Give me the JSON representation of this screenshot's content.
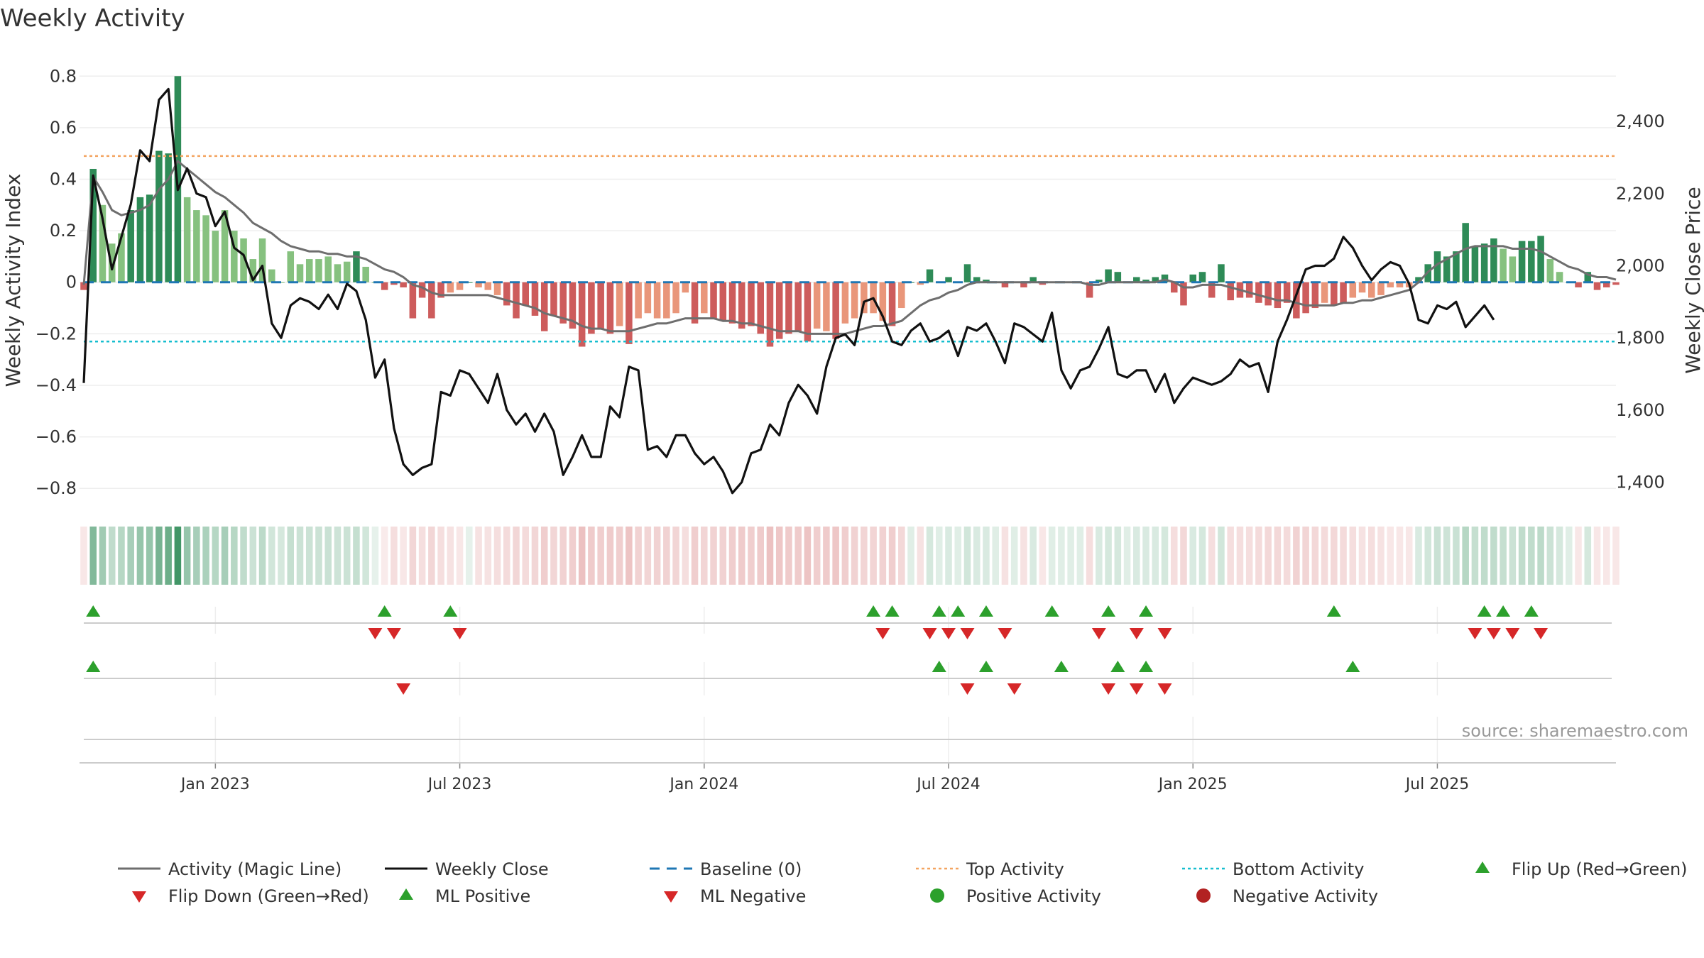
{
  "title": "Weekly Activity",
  "source": "source: sharemaestro.com",
  "colors": {
    "bar_pos_strong": "#2e8b57",
    "bar_pos_weak": "#86c17f",
    "bar_neg_strong": "#cd5c5c",
    "bar_neg_weak": "#e9967a",
    "magic_line": "#6e6e6e",
    "close_line": "#111111",
    "baseline": "#1f77b4",
    "top": "#f4a460",
    "bottom": "#17becf",
    "flip_up": "#2ca02c",
    "flip_down": "#d62728",
    "dot_pos": "#2ca02c",
    "dot_neg": "#b22222"
  },
  "chart_data": {
    "type": "bar",
    "title": "Weekly Activity",
    "ylabel": "Weekly Activity Index",
    "y2label": "Weekly Close Price",
    "ylim": [
      -0.86,
      0.82
    ],
    "y2lim": [
      1340,
      2540
    ],
    "y_ticks": [
      0.8,
      0.6,
      0.4,
      0.2,
      0,
      -0.2,
      -0.4,
      -0.6,
      -0.8
    ],
    "y_tick_labels": [
      "0.8",
      "0.6",
      "0.4",
      "0.2",
      "0",
      "−0.2",
      "−0.4",
      "−0.6",
      "−0.8"
    ],
    "y2_ticks": [
      2400,
      2200,
      2000,
      1800,
      1600,
      1400
    ],
    "y2_tick_labels": [
      "2,400",
      "2,200",
      "2,000",
      "1,800",
      "1,600",
      "1,400"
    ],
    "x_tick_weeks": [
      14,
      40,
      66,
      92,
      118,
      144
    ],
    "x_tick_labels": [
      "Jan 2023",
      "Jul 2023",
      "Jan 2024",
      "Jul 2024",
      "Jan 2025",
      "Jul 2025"
    ],
    "top_activity": 0.49,
    "bottom_activity": -0.23,
    "baseline": 0,
    "activity": [
      -0.03,
      0.44,
      0.3,
      0.15,
      0.19,
      0.28,
      0.33,
      0.34,
      0.51,
      0.5,
      0.8,
      0.33,
      0.28,
      0.26,
      0.2,
      0.28,
      0.2,
      0.17,
      0.09,
      0.17,
      0.05,
      0.0,
      0.12,
      0.07,
      0.09,
      0.09,
      0.1,
      0.07,
      0.08,
      0.12,
      0.06,
      0.0,
      -0.03,
      -0.01,
      -0.02,
      -0.14,
      -0.06,
      -0.14,
      -0.06,
      -0.04,
      -0.03,
      0.0,
      -0.02,
      -0.03,
      -0.05,
      -0.09,
      -0.14,
      -0.09,
      -0.13,
      -0.19,
      -0.13,
      -0.16,
      -0.18,
      -0.25,
      -0.2,
      -0.18,
      -0.2,
      -0.17,
      -0.24,
      -0.14,
      -0.12,
      -0.14,
      -0.14,
      -0.12,
      -0.04,
      -0.16,
      -0.12,
      -0.14,
      -0.15,
      -0.16,
      -0.18,
      -0.17,
      -0.2,
      -0.25,
      -0.22,
      -0.2,
      -0.19,
      -0.23,
      -0.18,
      -0.19,
      -0.22,
      -0.16,
      -0.14,
      -0.12,
      -0.12,
      -0.15,
      -0.17,
      -0.1,
      0.0,
      -0.01,
      0.05,
      0.0,
      0.02,
      0.0,
      0.07,
      0.02,
      0.01,
      0.0,
      -0.02,
      0.0,
      -0.02,
      0.02,
      -0.01,
      0.0,
      0.0,
      0.0,
      0.0,
      -0.06,
      0.01,
      0.05,
      0.04,
      0.0,
      0.02,
      0.01,
      0.02,
      0.03,
      -0.04,
      -0.09,
      0.03,
      0.04,
      -0.06,
      0.07,
      -0.07,
      -0.06,
      -0.06,
      -0.08,
      -0.09,
      -0.1,
      -0.08,
      -0.14,
      -0.12,
      -0.1,
      -0.08,
      -0.09,
      -0.08,
      -0.06,
      -0.04,
      -0.06,
      -0.05,
      -0.02,
      -0.02,
      -0.02,
      0.02,
      0.07,
      0.12,
      0.1,
      0.12,
      0.23,
      0.14,
      0.15,
      0.17,
      0.13,
      0.1,
      0.16,
      0.16,
      0.18,
      0.09,
      0.04,
      0.0,
      -0.02,
      0.04,
      -0.03,
      -0.02,
      -0.01
    ],
    "magic_line": [
      -0.01,
      0.41,
      0.35,
      0.28,
      0.26,
      0.27,
      0.28,
      0.3,
      0.36,
      0.4,
      0.47,
      0.44,
      0.41,
      0.38,
      0.35,
      0.33,
      0.3,
      0.27,
      0.23,
      0.21,
      0.19,
      0.16,
      0.14,
      0.13,
      0.12,
      0.12,
      0.11,
      0.11,
      0.1,
      0.1,
      0.09,
      0.07,
      0.05,
      0.04,
      0.02,
      -0.01,
      -0.02,
      -0.04,
      -0.05,
      -0.05,
      -0.05,
      -0.05,
      -0.05,
      -0.05,
      -0.06,
      -0.07,
      -0.08,
      -0.09,
      -0.1,
      -0.12,
      -0.13,
      -0.14,
      -0.15,
      -0.17,
      -0.18,
      -0.18,
      -0.19,
      -0.19,
      -0.19,
      -0.18,
      -0.17,
      -0.16,
      -0.16,
      -0.15,
      -0.14,
      -0.14,
      -0.14,
      -0.14,
      -0.15,
      -0.15,
      -0.16,
      -0.16,
      -0.17,
      -0.18,
      -0.19,
      -0.19,
      -0.19,
      -0.2,
      -0.2,
      -0.2,
      -0.2,
      -0.2,
      -0.19,
      -0.18,
      -0.17,
      -0.17,
      -0.16,
      -0.15,
      -0.12,
      -0.09,
      -0.07,
      -0.06,
      -0.04,
      -0.03,
      -0.01,
      0.0,
      0.0,
      0.0,
      0.0,
      0.0,
      0.0,
      0.0,
      0.0,
      0.0,
      0.0,
      0.0,
      0.0,
      -0.01,
      -0.01,
      0.0,
      0.0,
      0.0,
      0.0,
      0.0,
      0.0,
      0.01,
      0.0,
      -0.02,
      -0.02,
      -0.01,
      -0.01,
      -0.01,
      -0.02,
      -0.03,
      -0.04,
      -0.05,
      -0.06,
      -0.07,
      -0.07,
      -0.08,
      -0.09,
      -0.09,
      -0.09,
      -0.09,
      -0.08,
      -0.08,
      -0.07,
      -0.07,
      -0.06,
      -0.05,
      -0.04,
      -0.03,
      0.0,
      0.04,
      0.07,
      0.09,
      0.11,
      0.13,
      0.14,
      0.14,
      0.14,
      0.14,
      0.13,
      0.13,
      0.13,
      0.12,
      0.1,
      0.08,
      0.06,
      0.05,
      0.03,
      0.02,
      0.02,
      0.01
    ],
    "weekly_close": [
      1675,
      2250,
      2130,
      1990,
      2080,
      2170,
      2320,
      2290,
      2460,
      2490,
      2210,
      2270,
      2200,
      2190,
      2110,
      2150,
      2050,
      2030,
      1960,
      2000,
      1840,
      1800,
      1890,
      1910,
      1900,
      1880,
      1920,
      1880,
      1950,
      1930,
      1850,
      1690,
      1740,
      1550,
      1450,
      1420,
      1440,
      1450,
      1650,
      1640,
      1710,
      1700,
      1660,
      1620,
      1700,
      1600,
      1560,
      1590,
      1540,
      1590,
      1540,
      1420,
      1470,
      1530,
      1470,
      1470,
      1610,
      1580,
      1720,
      1710,
      1490,
      1500,
      1470,
      1530,
      1530,
      1480,
      1450,
      1470,
      1430,
      1370,
      1400,
      1480,
      1490,
      1560,
      1530,
      1620,
      1670,
      1640,
      1590,
      1720,
      1800,
      1810,
      1780,
      1900,
      1910,
      1860,
      1790,
      1780,
      1820,
      1840,
      1790,
      1800,
      1820,
      1750,
      1830,
      1820,
      1840,
      1790,
      1730,
      1840,
      1830,
      1810,
      1790,
      1870,
      1710,
      1660,
      1710,
      1720,
      1770,
      1830,
      1700,
      1690,
      1710,
      1710,
      1650,
      1700,
      1620,
      1660,
      1690,
      1680,
      1670,
      1680,
      1700,
      1740,
      1720,
      1730,
      1650,
      1790,
      1850,
      1920,
      1990,
      2000,
      2000,
      2020,
      2080,
      2050,
      2000,
      1960,
      1990,
      2010,
      2000,
      1950,
      1850,
      1840,
      1890,
      1880,
      1900,
      1830,
      1860,
      1890,
      1850
    ],
    "heat_strip_alpha": [
      0.15,
      0.6,
      0.45,
      0.3,
      0.35,
      0.42,
      0.5,
      0.5,
      0.65,
      0.7,
      0.9,
      0.5,
      0.42,
      0.4,
      0.35,
      0.42,
      0.35,
      0.3,
      0.25,
      0.32,
      0.22,
      0.2,
      0.28,
      0.25,
      0.25,
      0.25,
      0.26,
      0.24,
      0.25,
      0.28,
      0.22,
      0.12,
      0.12,
      0.2,
      0.15,
      0.25,
      0.2,
      0.25,
      0.2,
      0.18,
      0.15,
      0.12,
      0.18,
      0.18,
      0.2,
      0.22,
      0.25,
      0.22,
      0.25,
      0.3,
      0.25,
      0.28,
      0.3,
      0.38,
      0.32,
      0.3,
      0.32,
      0.3,
      0.36,
      0.28,
      0.26,
      0.28,
      0.28,
      0.26,
      0.2,
      0.3,
      0.26,
      0.28,
      0.28,
      0.3,
      0.32,
      0.3,
      0.32,
      0.38,
      0.34,
      0.32,
      0.32,
      0.36,
      0.3,
      0.32,
      0.34,
      0.3,
      0.28,
      0.26,
      0.26,
      0.28,
      0.3,
      0.24,
      0.15,
      0.18,
      0.2,
      0.15,
      0.18,
      0.15,
      0.22,
      0.18,
      0.18,
      0.15,
      0.18,
      0.15,
      0.18,
      0.18,
      0.15,
      0.15,
      0.15,
      0.15,
      0.15,
      0.2,
      0.18,
      0.2,
      0.2,
      0.15,
      0.18,
      0.18,
      0.18,
      0.2,
      0.2,
      0.24,
      0.18,
      0.2,
      0.2,
      0.22,
      0.2,
      0.2,
      0.2,
      0.22,
      0.24,
      0.24,
      0.22,
      0.28,
      0.26,
      0.24,
      0.22,
      0.24,
      0.22,
      0.2,
      0.18,
      0.2,
      0.18,
      0.15,
      0.15,
      0.15,
      0.18,
      0.22,
      0.26,
      0.24,
      0.26,
      0.35,
      0.28,
      0.3,
      0.3,
      0.28,
      0.25,
      0.3,
      0.3,
      0.32,
      0.25,
      0.2,
      0.15,
      0.15,
      0.2,
      0.15,
      0.15,
      0.15
    ],
    "flip_up_weeks": [
      1,
      32,
      39,
      84,
      86,
      91,
      93,
      96,
      103,
      109,
      113,
      133,
      149,
      151,
      154
    ],
    "flip_down_weeks": [
      31,
      33,
      40,
      85,
      90,
      92,
      94,
      98,
      108,
      112,
      115,
      148,
      150,
      152,
      155
    ],
    "ml_positive_weeks": [
      1,
      91,
      96,
      104,
      110,
      113,
      135
    ],
    "ml_negative_weeks": [
      34,
      94,
      99,
      109,
      112,
      115
    ],
    "legend": [
      {
        "key": "magic",
        "label": "Activity (Magic Line)"
      },
      {
        "key": "close",
        "label": "Weekly Close"
      },
      {
        "key": "baseline",
        "label": "Baseline (0)"
      },
      {
        "key": "top",
        "label": "Top Activity"
      },
      {
        "key": "bottom",
        "label": "Bottom Activity"
      },
      {
        "key": "flip_up",
        "label": "Flip Up (Red→Green)"
      },
      {
        "key": "flip_down",
        "label": "Flip Down (Green→Red)"
      },
      {
        "key": "ml_pos",
        "label": "ML Positive"
      },
      {
        "key": "ml_neg",
        "label": "ML Negative"
      },
      {
        "key": "pos_act",
        "label": "Positive Activity"
      },
      {
        "key": "neg_act",
        "label": "Negative Activity"
      }
    ]
  }
}
